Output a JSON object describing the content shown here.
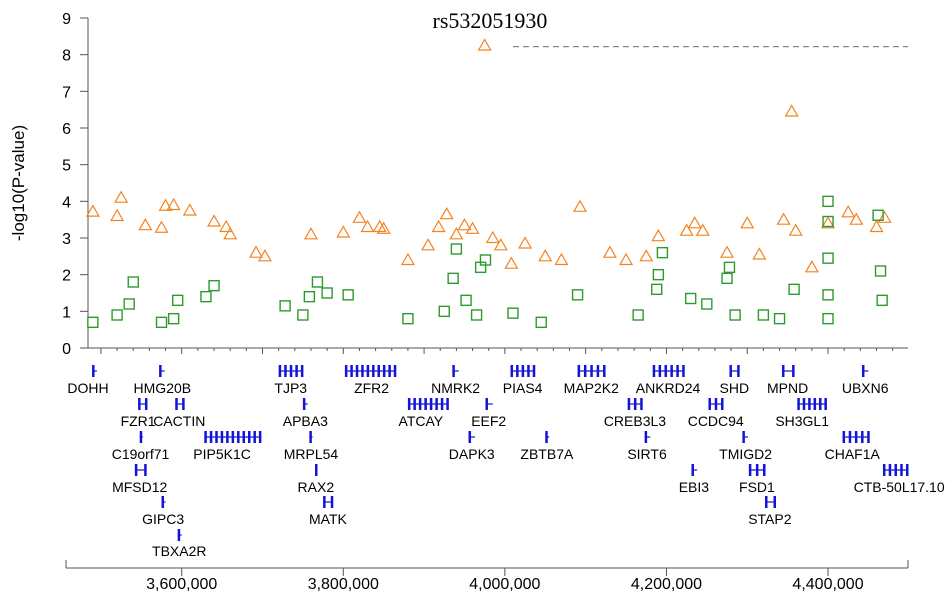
{
  "chart_data": {
    "type": "scatter",
    "title": "rs532051930",
    "ylabel": "-log10(P-value)",
    "xlabel": "",
    "xlim": [
      3484000,
      4499000
    ],
    "ylim": [
      0,
      9
    ],
    "y_ticks": [
      "0",
      "1",
      "2",
      "3",
      "4",
      "5",
      "6",
      "7",
      "8",
      "9"
    ],
    "x_ticks": [
      {
        "value": 3600000,
        "label": "3,600,000"
      },
      {
        "value": 3800000,
        "label": "3,800,000"
      },
      {
        "value": 4000000,
        "label": "4,000,000"
      },
      {
        "value": 4200000,
        "label": "4,200,000"
      },
      {
        "value": 4400000,
        "label": "4,400,000"
      }
    ],
    "significance_line": {
      "y": 8.22,
      "x_start": 4010000,
      "x_end": 4499000
    },
    "colors": {
      "triangle": "#f5821f",
      "square": "#2e9a2e",
      "gene": "#1414d8",
      "threshold": "#888888",
      "axis": "#555555"
    },
    "series": [
      {
        "marker": "triangle",
        "values": [
          [
            3975000,
            8.25
          ],
          [
            4355000,
            6.45
          ],
          [
            3525000,
            4.1
          ],
          [
            3490000,
            3.72
          ],
          [
            3520000,
            3.6
          ],
          [
            3555000,
            3.35
          ],
          [
            3580000,
            3.88
          ],
          [
            3590000,
            3.9
          ],
          [
            3610000,
            3.75
          ],
          [
            3575000,
            3.28
          ],
          [
            3640000,
            3.45
          ],
          [
            3655000,
            3.3
          ],
          [
            3660000,
            3.1
          ],
          [
            3692000,
            2.6
          ],
          [
            3703000,
            2.5
          ],
          [
            3760000,
            3.1
          ],
          [
            3800000,
            3.15
          ],
          [
            3820000,
            3.55
          ],
          [
            3830000,
            3.3
          ],
          [
            3845000,
            3.3
          ],
          [
            3850000,
            3.25
          ],
          [
            3880000,
            2.4
          ],
          [
            3905000,
            2.8
          ],
          [
            3918000,
            3.3
          ],
          [
            3928000,
            3.65
          ],
          [
            3940000,
            3.1
          ],
          [
            3950000,
            3.35
          ],
          [
            3960000,
            3.25
          ],
          [
            3985000,
            3.0
          ],
          [
            3995000,
            2.8
          ],
          [
            4008000,
            2.3
          ],
          [
            4025000,
            2.85
          ],
          [
            4050000,
            2.5
          ],
          [
            4070000,
            2.4
          ],
          [
            4093000,
            3.85
          ],
          [
            4130000,
            2.6
          ],
          [
            4150000,
            2.4
          ],
          [
            4175000,
            2.5
          ],
          [
            4190000,
            3.05
          ],
          [
            4225000,
            3.2
          ],
          [
            4235000,
            3.4
          ],
          [
            4245000,
            3.2
          ],
          [
            4275000,
            2.6
          ],
          [
            4300000,
            3.4
          ],
          [
            4315000,
            2.55
          ],
          [
            4345000,
            3.5
          ],
          [
            4360000,
            3.2
          ],
          [
            4380000,
            2.2
          ],
          [
            4400000,
            3.4
          ],
          [
            4425000,
            3.7
          ],
          [
            4435000,
            3.5
          ],
          [
            4460000,
            3.3
          ],
          [
            4470000,
            3.55
          ]
        ]
      },
      {
        "marker": "square",
        "values": [
          [
            3490000,
            0.7
          ],
          [
            3520000,
            0.9
          ],
          [
            3535000,
            1.2
          ],
          [
            3540000,
            1.8
          ],
          [
            3575000,
            0.7
          ],
          [
            3590000,
            0.8
          ],
          [
            3595000,
            1.3
          ],
          [
            3630000,
            1.4
          ],
          [
            3640000,
            1.7
          ],
          [
            3728000,
            1.15
          ],
          [
            3750000,
            0.9
          ],
          [
            3758000,
            1.4
          ],
          [
            3768000,
            1.8
          ],
          [
            3780000,
            1.5
          ],
          [
            3806000,
            1.45
          ],
          [
            3880000,
            0.8
          ],
          [
            3925000,
            1.0
          ],
          [
            3936000,
            1.9
          ],
          [
            3940000,
            2.7
          ],
          [
            3952000,
            1.3
          ],
          [
            3965000,
            0.9
          ],
          [
            3970000,
            2.2
          ],
          [
            3976000,
            2.4
          ],
          [
            4010000,
            0.95
          ],
          [
            4045000,
            0.7
          ],
          [
            4090000,
            1.45
          ],
          [
            4165000,
            0.9
          ],
          [
            4188000,
            1.6
          ],
          [
            4190000,
            2.0
          ],
          [
            4195000,
            2.6
          ],
          [
            4230000,
            1.35
          ],
          [
            4250000,
            1.2
          ],
          [
            4275000,
            1.9
          ],
          [
            4278000,
            2.2
          ],
          [
            4285000,
            0.9
          ],
          [
            4320000,
            0.9
          ],
          [
            4340000,
            0.8
          ],
          [
            4358000,
            1.6
          ],
          [
            4400000,
            4.0
          ],
          [
            4400000,
            3.45
          ],
          [
            4400000,
            2.45
          ],
          [
            4400000,
            1.45
          ],
          [
            4400000,
            0.8
          ],
          [
            4462000,
            3.62
          ],
          [
            4465000,
            2.1
          ],
          [
            4467000,
            1.3
          ]
        ]
      }
    ]
  },
  "genes": [
    {
      "label": "DOHH",
      "start": 3489000,
      "end": 3495000,
      "row": 0,
      "text_x": 3484000
    },
    {
      "label": "HMG20B",
      "start": 3572000,
      "end": 3579000,
      "row": 0,
      "text_x": 3576000
    },
    {
      "label": "TJP3",
      "start": 3720000,
      "end": 3750000,
      "row": 0,
      "text_x": 3735000
    },
    {
      "label": "ZFR2",
      "start": 3802000,
      "end": 3865000,
      "row": 0,
      "text_x": 3835000
    },
    {
      "label": "NMRK2",
      "start": 3935000,
      "end": 3943000,
      "row": 0,
      "text_x": 3939000
    },
    {
      "label": "PIAS4",
      "start": 4007000,
      "end": 4037000,
      "row": 0,
      "text_x": 4022000
    },
    {
      "label": "MAP2K2",
      "start": 4090000,
      "end": 4124000,
      "row": 0,
      "text_x": 4107000
    },
    {
      "label": "ANKRD24",
      "start": 4183000,
      "end": 4222000,
      "row": 0,
      "text_x": 4202000
    },
    {
      "label": "SHD",
      "start": 4278000,
      "end": 4290000,
      "row": 0,
      "text_x": 4284000
    },
    {
      "label": "MPND",
      "start": 4343000,
      "end": 4358000,
      "row": 0,
      "text_x": 4350000
    },
    {
      "label": "UBXN6",
      "start": 4442000,
      "end": 4450000,
      "row": 0,
      "text_x": 4446000
    },
    {
      "label": "FZR1",
      "start": 3546000,
      "end": 3557000,
      "row": 1,
      "text_x": 3546000
    },
    {
      "label": "CACTIN",
      "start": 3592000,
      "end": 3603000,
      "row": 1,
      "text_x": 3597000
    },
    {
      "label": "APBA3",
      "start": 3750000,
      "end": 3756000,
      "row": 1,
      "text_x": 3753000
    },
    {
      "label": "ATCAY",
      "start": 3880000,
      "end": 3930000,
      "row": 1,
      "text_x": 3896000
    },
    {
      "label": "EEF2",
      "start": 3976000,
      "end": 3985000,
      "row": 1,
      "text_x": 3980000
    },
    {
      "label": "CREB3L3",
      "start": 4152000,
      "end": 4170000,
      "row": 1,
      "text_x": 4161000
    },
    {
      "label": "CCDC94",
      "start": 4252000,
      "end": 4270000,
      "row": 1,
      "text_x": 4261000
    },
    {
      "label": "SH3GL1",
      "start": 4362000,
      "end": 4398000,
      "row": 1,
      "text_x": 4368000
    },
    {
      "label": "C19orf71",
      "start": 3548000,
      "end": 3552000,
      "row": 2,
      "text_x": 3549000
    },
    {
      "label": "PIP5K1C",
      "start": 3628000,
      "end": 3698000,
      "row": 2,
      "text_x": 3650000
    },
    {
      "label": "MRPL54",
      "start": 3758000,
      "end": 3762000,
      "row": 2,
      "text_x": 3760000
    },
    {
      "label": "DAPK3",
      "start": 3955000,
      "end": 3963000,
      "row": 2,
      "text_x": 3959000
    },
    {
      "label": "ZBTB7A",
      "start": 4050000,
      "end": 4055000,
      "row": 2,
      "text_x": 4052000
    },
    {
      "label": "SIRT6",
      "start": 4173000,
      "end": 4180000,
      "row": 2,
      "text_x": 4176000
    },
    {
      "label": "TMIGD2",
      "start": 4294000,
      "end": 4301000,
      "row": 2,
      "text_x": 4298000
    },
    {
      "label": "CHAF1A",
      "start": 4418000,
      "end": 4451000,
      "row": 2,
      "text_x": 4430000
    },
    {
      "label": "MFSD12",
      "start": 3542000,
      "end": 3556000,
      "row": 3,
      "text_x": 3548000
    },
    {
      "label": "RAX2",
      "start": 3765000,
      "end": 3768000,
      "row": 3,
      "text_x": 3766000
    },
    {
      "label": "EBI3",
      "start": 4231000,
      "end": 4238000,
      "row": 3,
      "text_x": 4234000
    },
    {
      "label": "FSD1",
      "start": 4302000,
      "end": 4322000,
      "row": 3,
      "text_x": 4312000
    },
    {
      "label": "CTB-50L17.10",
      "start": 4468000,
      "end": 4499000,
      "row": 3,
      "text_x": 4488000
    },
    {
      "label": "GIPC3",
      "start": 3575000,
      "end": 3580000,
      "row": 4,
      "text_x": 3577000
    },
    {
      "label": "MATK",
      "start": 3775000,
      "end": 3787000,
      "row": 4,
      "text_x": 3781000
    },
    {
      "label": "STAP2",
      "start": 4322000,
      "end": 4335000,
      "row": 4,
      "text_x": 4328000
    },
    {
      "label": "TBXA2R",
      "start": 3595000,
      "end": 3600000,
      "row": 5,
      "text_x": 3597000
    }
  ]
}
